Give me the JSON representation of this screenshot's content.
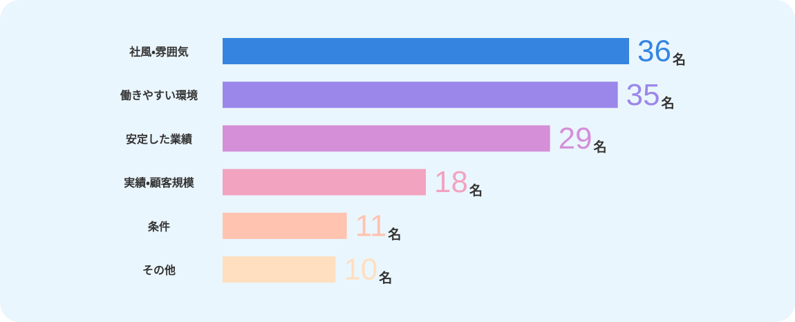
{
  "chart_data": {
    "type": "hbar",
    "categories": [
      "社風・雰囲気",
      "働きやすい環境",
      "安定した業績",
      "実績・顧客規模",
      "条件",
      "その他"
    ],
    "values": [
      36,
      35,
      29,
      18,
      11,
      10
    ],
    "colors": [
      "#3585e0",
      "#9b87ea",
      "#d48fd8",
      "#f2a3c0",
      "#ffc3b0",
      "#ffdfc0"
    ],
    "unit": "名"
  }
}
